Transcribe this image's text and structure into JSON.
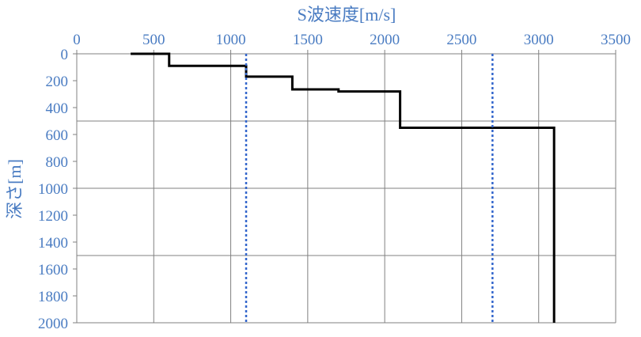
{
  "chart_data": {
    "type": "line",
    "title": "",
    "xlabel": "S波速度[m/s]",
    "ylabel": "深さ[m]",
    "x_axis_position": "top",
    "y_axis_inverted": true,
    "xlim": [
      0,
      3500
    ],
    "ylim": [
      0,
      2000
    ],
    "xticks": [
      "0",
      "500",
      "1000",
      "1500",
      "2000",
      "2500",
      "3000",
      "3500"
    ],
    "yticks": [
      "0",
      "200",
      "400",
      "600",
      "800",
      "1000",
      "1200",
      "1400",
      "1600",
      "1800",
      "2000"
    ],
    "x_gridlines": [
      500,
      1000,
      1500,
      2000,
      2500,
      3000
    ],
    "y_gridlines": [
      500,
      1000,
      1500
    ],
    "grid": true,
    "series": [
      {
        "style": "solid",
        "color": "#000000",
        "points": [
          [
            350,
            0
          ],
          [
            600,
            0
          ],
          [
            600,
            90
          ],
          [
            1100,
            90
          ],
          [
            1100,
            170
          ],
          [
            1400,
            170
          ],
          [
            1400,
            265
          ],
          [
            1700,
            265
          ],
          [
            1700,
            280
          ],
          [
            2100,
            280
          ],
          [
            2100,
            550
          ],
          [
            3100,
            550
          ],
          [
            3100,
            2000
          ]
        ]
      },
      {
        "style": "dotted",
        "color": "#3366cc",
        "points": [
          [
            1100,
            0
          ],
          [
            1100,
            2000
          ]
        ]
      },
      {
        "style": "dotted",
        "color": "#3366cc",
        "points": [
          [
            2700,
            0
          ],
          [
            2700,
            2000
          ]
        ]
      }
    ]
  },
  "colors": {
    "label_blue": "#4a7cc2",
    "grid": "#808080",
    "axis": "#808080",
    "profile": "#000000",
    "reference": "#3366cc"
  }
}
